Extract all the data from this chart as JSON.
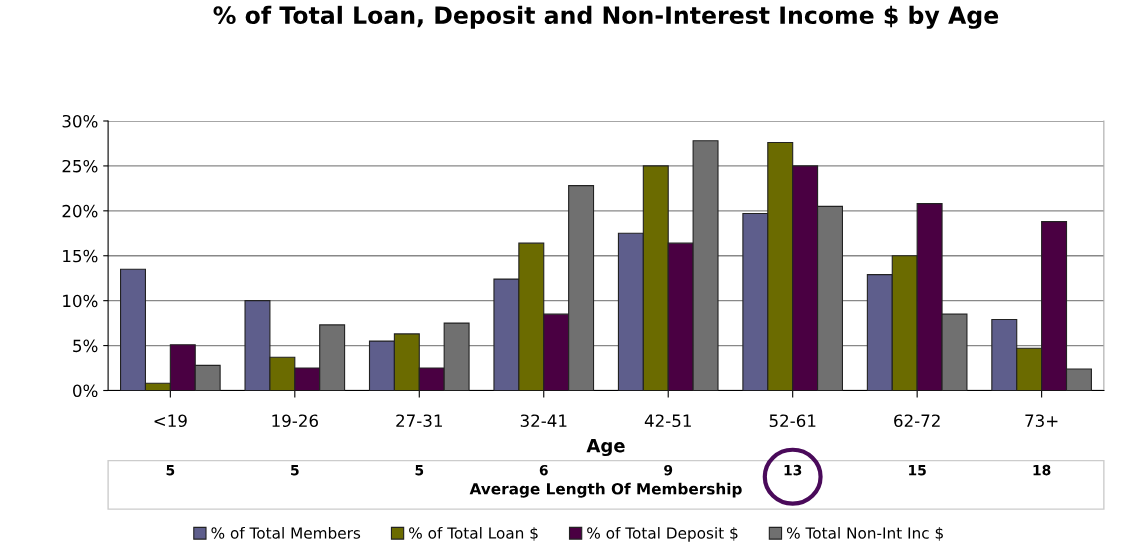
{
  "chart_data": {
    "type": "bar",
    "title": "% of Total Loan, Deposit and Non-Interest Income $ by Age",
    "xlabel": "Age",
    "categories": [
      "<19",
      "19-26",
      "27-31",
      "32-41",
      "42-51",
      "52-61",
      "62-72",
      "73+"
    ],
    "series": [
      {
        "name": "% of Total Members",
        "color": "#5e5e8c",
        "values": [
          13.5,
          10,
          5.5,
          12.4,
          17.5,
          19.7,
          12.9,
          7.9
        ]
      },
      {
        "name": "% of Total Loan $",
        "color": "#6b6b00",
        "values": [
          0.8,
          3.7,
          6.3,
          16.4,
          25,
          27.6,
          15,
          4.7
        ]
      },
      {
        "name": "% of Total Deposit $",
        "color": "#4a0042",
        "values": [
          5.1,
          2.5,
          2.5,
          8.5,
          16.4,
          25,
          20.8,
          18.8
        ]
      },
      {
        "name": "% Total Non-Int Inc $",
        "color": "#707070",
        "values": [
          2.8,
          7.3,
          7.5,
          22.8,
          27.8,
          20.5,
          8.5,
          2.4
        ]
      }
    ],
    "ylim": [
      0,
      30
    ],
    "yticks": [
      {
        "value": 0,
        "label": "0%"
      },
      {
        "value": 5,
        "label": "5%"
      },
      {
        "value": 10,
        "label": "10%"
      },
      {
        "value": 15,
        "label": "15%"
      },
      {
        "value": 20,
        "label": "20%"
      },
      {
        "value": 25,
        "label": "25%"
      },
      {
        "value": 30,
        "label": "30%"
      }
    ],
    "grid": "y",
    "legend": "bottom",
    "annotations": [
      "5",
      "5",
      "5",
      "6",
      "9",
      "13",
      "15",
      "18",
      "Average Length Of Membership"
    ]
  }
}
